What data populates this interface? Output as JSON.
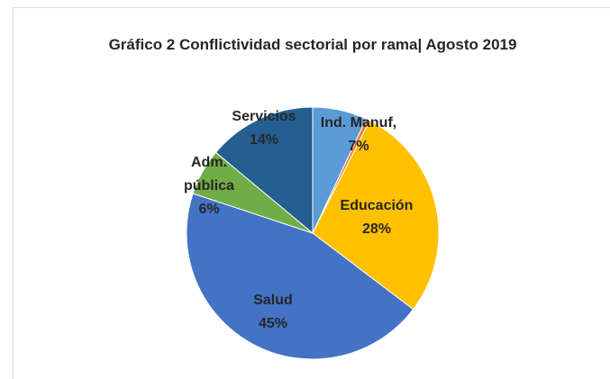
{
  "chart_data": {
    "type": "pie",
    "title": "Gráfico 2 Conflictividad sectorial por rama| Agosto 2019",
    "categories": [
      "Ind. Manuf,",
      null,
      "Educación",
      "Salud",
      "Adm. pública",
      "Servicios"
    ],
    "values": [
      7,
      0.5,
      28,
      45,
      6,
      14
    ],
    "value_labels": [
      "7%",
      null,
      "28%",
      "45%",
      "6%",
      "14%"
    ],
    "colors": [
      "#5b9bd5",
      "#ed7d31",
      "#ffc000",
      "#4472c4",
      "#70ad47",
      "#255e91"
    ]
  }
}
